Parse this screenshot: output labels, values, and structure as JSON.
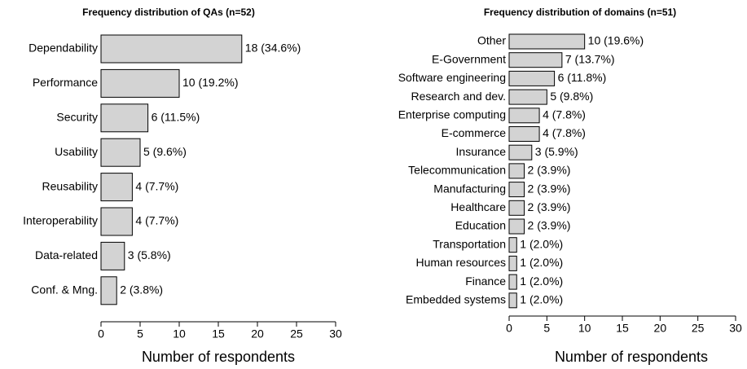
{
  "chart_data": [
    {
      "type": "bar",
      "orientation": "horizontal",
      "title": "Frequency distribution of QAs (n=52)",
      "x_label": "Number of respondents",
      "categories": [
        "Dependability",
        "Performance",
        "Security",
        "Usability",
        "Reusability",
        "Interoperability",
        "Data-related",
        "Conf. & Mng."
      ],
      "values": [
        18,
        10,
        6,
        5,
        4,
        4,
        3,
        2
      ],
      "value_labels": [
        "18 (34.6%)",
        "10 (19.2%)",
        "6 (11.5%)",
        "5 (9.6%)",
        "4 (7.7%)",
        "4 (7.7%)",
        "3 (5.8%)",
        "2 (3.8%)"
      ],
      "color": "#d3d3d3",
      "xlim": [
        0,
        30
      ],
      "xticks": [
        0,
        5,
        10,
        15,
        20,
        25,
        30
      ]
    },
    {
      "type": "bar",
      "orientation": "horizontal",
      "title": "Frequency distribution of domains (n=51)",
      "x_label": "Number of respondents",
      "categories": [
        "Other",
        "E-Government",
        "Software engineering",
        "Research and dev.",
        "Enterprise computing",
        "E-commerce",
        "Insurance",
        "Telecommunication",
        "Manufacturing",
        "Healthcare",
        "Education",
        "Transportation",
        "Human resources",
        "Finance",
        "Embedded systems"
      ],
      "values": [
        10,
        7,
        6,
        5,
        4,
        4,
        3,
        2,
        2,
        2,
        2,
        1,
        1,
        1,
        1
      ],
      "value_labels": [
        "10 (19.6%)",
        "7 (13.7%)",
        "6 (11.8%)",
        "5 (9.8%)",
        "4 (7.8%)",
        "4 (7.8%)",
        "3 (5.9%)",
        "2 (3.9%)",
        "2 (3.9%)",
        "2 (3.9%)",
        "2 (3.9%)",
        "1 (2.0%)",
        "1 (2.0%)",
        "1 (2.0%)",
        "1 (2.0%)"
      ],
      "color": "#d3d3d3",
      "xlim": [
        0,
        30
      ],
      "xticks": [
        0,
        5,
        10,
        15,
        20,
        25,
        30
      ]
    }
  ]
}
